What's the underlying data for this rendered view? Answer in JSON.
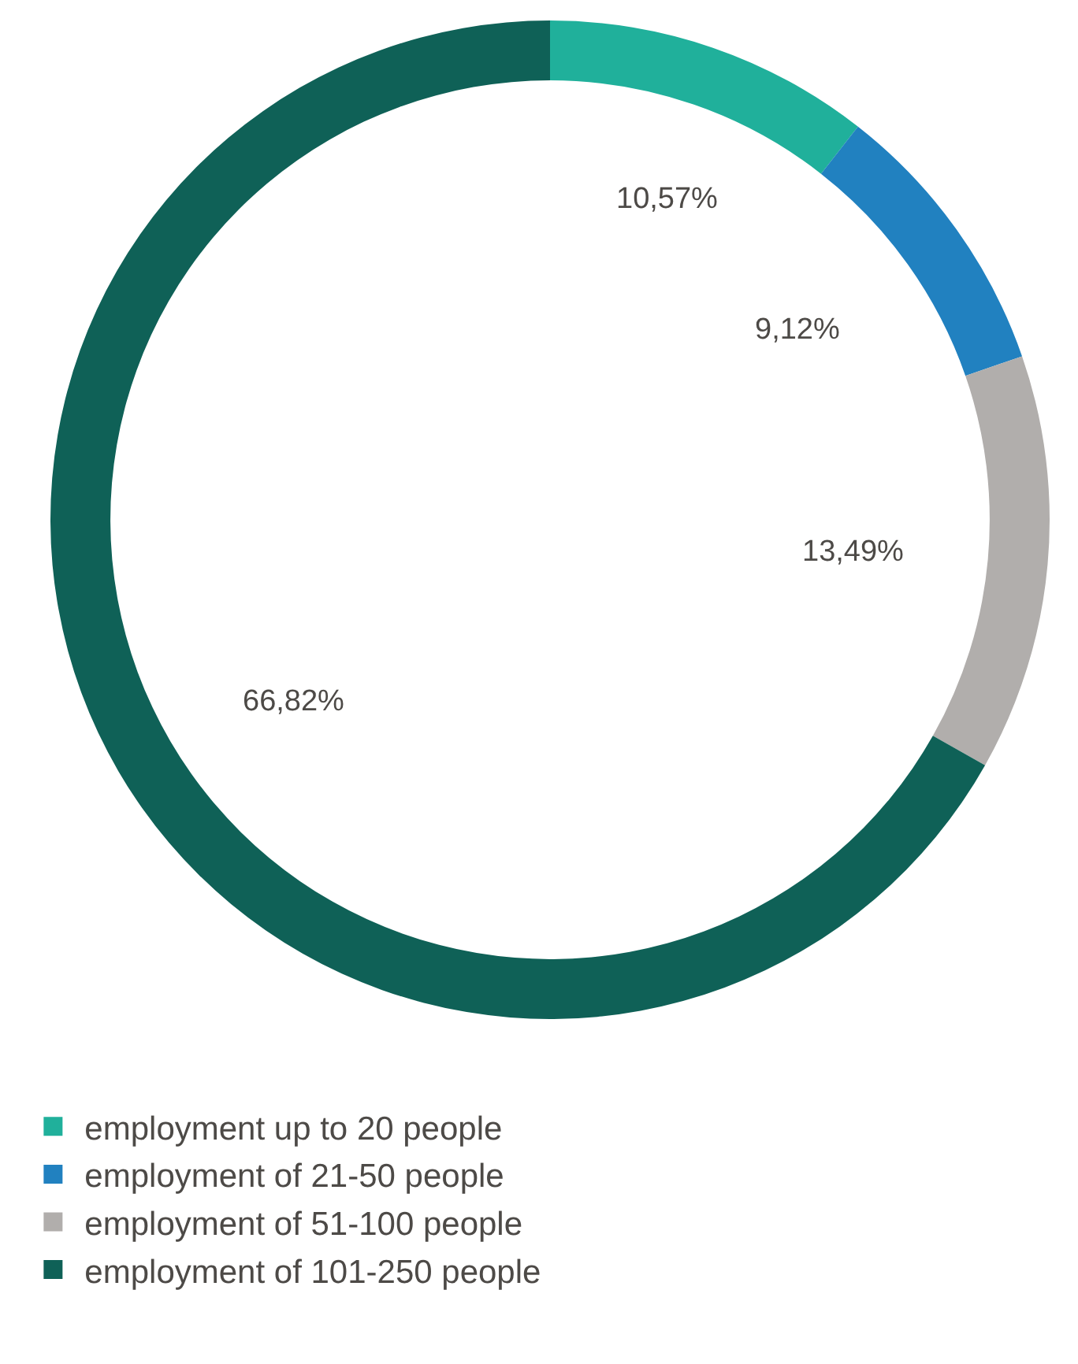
{
  "chart_data": {
    "type": "donut",
    "categories": [
      "employment up to 20 people",
      "employment of 21-50 people",
      "employment of 51-100 people",
      "employment of 101-250 people"
    ],
    "values": [
      10.57,
      9.12,
      13.49,
      66.82
    ],
    "colors": [
      "#20b09b",
      "#2181c0",
      "#b1aeac",
      "#0f6157"
    ],
    "value_labels": [
      "10,57%",
      "9,12%",
      "13,49%",
      "66,82%"
    ],
    "legend": "bottom"
  }
}
